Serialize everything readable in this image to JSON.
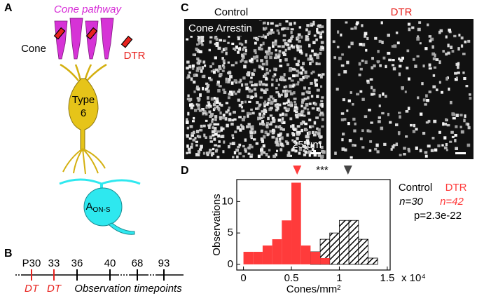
{
  "panel_a": {
    "label": "A",
    "title": "Cone pathway",
    "cone": "Cone",
    "dtr": "DTR",
    "bipolar": [
      "Type",
      "6"
    ],
    "amacrine": {
      "text": "A",
      "sub": "ON-S"
    }
  },
  "panel_b": {
    "label": "B",
    "ticks": [
      "P30",
      "33",
      "36",
      "40",
      "68",
      "93"
    ],
    "dt": [
      "DT",
      "DT"
    ],
    "caption": "Observation timepoints"
  },
  "panel_c": {
    "label": "C",
    "titles": [
      "Control",
      "DTR"
    ],
    "stain": "Cone Arrestin",
    "scale": "25 μm"
  },
  "chart_data": {
    "type": "histogram",
    "label": "D",
    "bins": [
      0,
      0.1,
      0.2,
      0.3,
      0.4,
      0.5,
      0.6,
      0.7,
      0.8,
      0.9,
      1,
      1.1,
      1.2,
      1.3,
      1.4,
      1.5
    ],
    "series": [
      {
        "name": "Control",
        "n_label": "n=30",
        "color": "#000000",
        "values": [
          0,
          0,
          0,
          0,
          0,
          0,
          0,
          2,
          4,
          5,
          7,
          7,
          4,
          1,
          0
        ]
      },
      {
        "name": "DTR",
        "n_label": "n=42",
        "color": "#ff3b3b",
        "values": [
          2,
          2,
          3,
          4,
          7,
          13,
          3,
          2,
          1,
          0,
          0,
          0,
          0,
          0,
          0
        ]
      }
    ],
    "markers": [
      {
        "value": 0.56,
        "color": "#ff3b3b"
      },
      {
        "value": 1.09,
        "color": "#444444"
      }
    ],
    "significance": "***",
    "p_label": "p=2.3e-22",
    "xlabel": "Cones/mm²",
    "x_multiplier": "x 10⁴",
    "ylabel": "Observations",
    "xlim": [
      -0.07,
      1.53
    ],
    "ylim": [
      -0.9,
      13.5
    ],
    "xticks": [
      0,
      0.5,
      1,
      1.5
    ],
    "yticks": [
      0,
      5,
      10
    ]
  }
}
